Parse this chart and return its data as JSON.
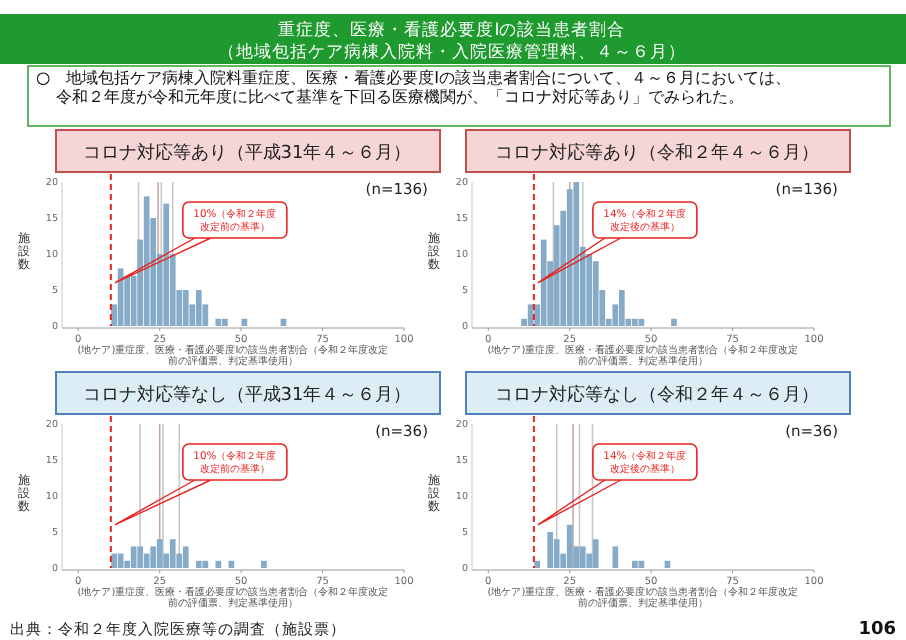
{
  "chart_data": [
    {
      "type": "histogram",
      "title": "コロナ対応等あり（平成31年４～６月）",
      "xlabel": "(地ケア)重症度、医療・看護必要度Ⅰの該当患者割合（令和２年度改定前の評価票、判定基準使用）",
      "ylabel": "施設数",
      "bins": [
        10,
        12,
        14,
        16,
        18,
        20,
        22,
        24,
        26,
        28,
        30,
        32,
        34,
        36,
        38,
        40,
        42,
        44,
        46,
        48,
        50,
        52,
        54,
        56,
        58,
        60,
        62,
        64
      ],
      "values": [
        3,
        8,
        7,
        7,
        12,
        18,
        15,
        10,
        17,
        10,
        5,
        5,
        3,
        5,
        3,
        0,
        1,
        1,
        0,
        0,
        1,
        0,
        0,
        0,
        0,
        0,
        1
      ],
      "color": "#86abc8",
      "xlim": [
        -5,
        100
      ],
      "xticks": [
        0,
        25,
        50,
        75,
        100
      ],
      "ylim": [
        0,
        20
      ],
      "yticks": [
        0,
        5,
        10,
        15,
        20
      ],
      "ref_lines": [
        {
          "axis": "x",
          "value": 10,
          "label": "10%（令和２年度改定前の基準）",
          "color": "#e8231f",
          "line_style": "dashed"
        },
        {
          "axis": "x",
          "value": 18.5,
          "color": "#c8c8c8"
        },
        {
          "axis": "x",
          "value": 24.5,
          "color": "#c8a8a8"
        },
        {
          "axis": "x",
          "value": 25.5,
          "color": "#c8c8c8"
        },
        {
          "axis": "x",
          "value": 29,
          "color": "#c8c8c8"
        }
      ],
      "annotations": [
        "(n=136)",
        "重症度、医療・看護必要度Ⅰの該当患者割合",
        "（地域包括ケア病棟入院料・入院医療管理料、４～６月）",
        "○　地域包括ケア病棟入院料重症度、医療・看護必要度Ⅰの該当患者割合について、４～６月においては、令和２年度が令和元年度に比べて基準を下回る医療機関が、「コロナ対応等あり」でみられた。",
        "出典：令和２年度入院医療等の調査（施設票）",
        "106"
      ]
    },
    {
      "type": "histogram",
      "title": "コロナ対応等あり（令和２年４～６月）",
      "xlabel": "(地ケア)重症度、医療・看護必要度Ⅰの該当患者割合（令和２年度改定前の評価票、判定基準使用）",
      "ylabel": "施設数",
      "bins": [
        10,
        12,
        14,
        16,
        18,
        20,
        22,
        24,
        26,
        28,
        30,
        32,
        34,
        36,
        38,
        40,
        42,
        44,
        46,
        48,
        50,
        52,
        54,
        56,
        58
      ],
      "values": [
        1,
        3,
        3,
        12,
        9,
        14,
        16,
        19,
        20,
        11,
        10,
        9,
        5,
        1,
        3,
        5,
        1,
        1,
        1,
        0,
        0,
        0,
        0,
        1
      ],
      "color": "#86abc8",
      "xlim": [
        -5,
        100
      ],
      "xticks": [
        0,
        25,
        50,
        75,
        100
      ],
      "ylim": [
        0,
        20
      ],
      "yticks": [
        0,
        5,
        10,
        15,
        20
      ],
      "ref_lines": [
        {
          "axis": "x",
          "value": 14,
          "label": "14%（令和２年度改定後の基準）",
          "color": "#e8231f",
          "line_style": "dashed"
        },
        {
          "axis": "x",
          "value": 20,
          "color": "#c8c8c8"
        },
        {
          "axis": "x",
          "value": 25,
          "color": "#c8a8a8"
        },
        {
          "axis": "x",
          "value": 29,
          "color": "#c8c8c8"
        }
      ],
      "annotations": [
        "(n=136)"
      ]
    },
    {
      "type": "histogram",
      "title": "コロナ対応等なし（平成31年４～６月）",
      "xlabel": "(地ケア)重症度、医療・看護必要度Ⅰの該当患者割合（令和２年度改定前の評価票、判定基準使用）",
      "ylabel": "施設数",
      "bins": [
        10,
        12,
        14,
        16,
        18,
        20,
        22,
        24,
        26,
        28,
        30,
        32,
        34,
        36,
        38,
        40,
        42,
        44,
        46,
        48,
        50,
        52,
        54,
        56,
        58
      ],
      "values": [
        2,
        2,
        1,
        3,
        3,
        2,
        3,
        4,
        2,
        4,
        2,
        3,
        0,
        1,
        1,
        0,
        1,
        0,
        1,
        0,
        0,
        0,
        0,
        1
      ],
      "color": "#86abc8",
      "xlim": [
        -5,
        100
      ],
      "xticks": [
        0,
        25,
        50,
        75,
        100
      ],
      "ylim": [
        0,
        20
      ],
      "yticks": [
        0,
        5,
        10,
        15,
        20
      ],
      "ref_lines": [
        {
          "axis": "x",
          "value": 10,
          "label": "10%（令和２年度改定前の基準）",
          "color": "#e8231f",
          "line_style": "dashed"
        },
        {
          "axis": "x",
          "value": 19,
          "color": "#c8c8c8"
        },
        {
          "axis": "x",
          "value": 25,
          "color": "#c8a8a8"
        },
        {
          "axis": "x",
          "value": 26,
          "color": "#c8c8c8"
        },
        {
          "axis": "x",
          "value": 31,
          "color": "#c8c8c8"
        }
      ],
      "annotations": [
        "(n=36)"
      ]
    },
    {
      "type": "histogram",
      "title": "コロナ対応等なし（令和２年４～６月）",
      "xlabel": "(地ケア)重症度、医療・看護必要度Ⅰの該当患者割合（令和２年度改定前の評価票、判定基準使用）",
      "ylabel": "施設数",
      "bins": [
        14,
        16,
        18,
        20,
        22,
        24,
        26,
        28,
        30,
        32,
        34,
        36,
        38,
        40,
        42,
        44,
        46,
        48,
        50,
        52,
        54,
        56
      ],
      "values": [
        1,
        0,
        5,
        4,
        2,
        6,
        3,
        3,
        2,
        4,
        0,
        0,
        3,
        0,
        0,
        1,
        1,
        0,
        0,
        0,
        1
      ],
      "color": "#86abc8",
      "xlim": [
        -5,
        100
      ],
      "xticks": [
        0,
        25,
        50,
        75,
        100
      ],
      "ylim": [
        0,
        20
      ],
      "yticks": [
        0,
        5,
        10,
        15,
        20
      ],
      "ref_lines": [
        {
          "axis": "x",
          "value": 14,
          "label": "14%（令和２年度改定後の基準）",
          "color": "#e8231f",
          "line_style": "dashed"
        },
        {
          "axis": "x",
          "value": 21,
          "color": "#c8c8c8"
        },
        {
          "axis": "x",
          "value": 26,
          "color": "#c8a8a8"
        },
        {
          "axis": "x",
          "value": 28,
          "color": "#c8c8c8"
        },
        {
          "axis": "x",
          "value": 32,
          "color": "#c8c8c8"
        }
      ],
      "annotations": [
        "(n=36)"
      ]
    }
  ]
}
